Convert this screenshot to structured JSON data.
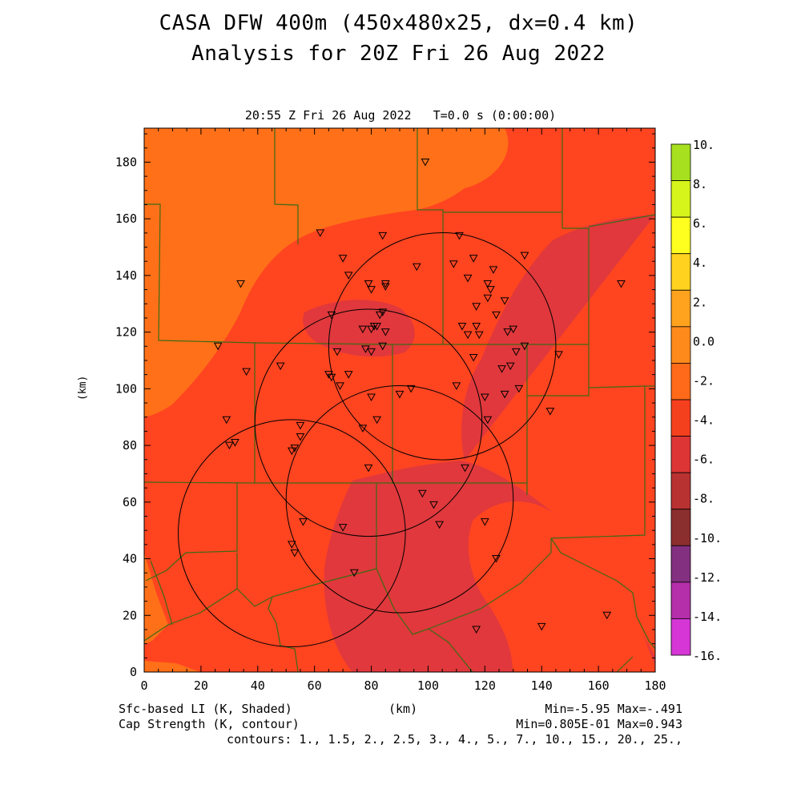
{
  "header": {
    "title_line1": "CASA DFW 400m (450x480x25, dx=0.4 km)",
    "title_line2": "Analysis for 20Z Fri 26 Aug 2022",
    "subtitle": "20:55 Z Fri 26 Aug 2022   T=0.0 s (0:00:00)"
  },
  "axes": {
    "x_label": "(km)",
    "y_label": "(km)",
    "x_ticks": [
      "0",
      "20",
      "40",
      "60",
      "80",
      "100",
      "120",
      "140",
      "160",
      "180"
    ],
    "y_ticks": [
      "0",
      "20",
      "40",
      "60",
      "80",
      "100",
      "120",
      "140",
      "160",
      "180"
    ],
    "x_range": [
      0,
      180
    ],
    "y_range": [
      0,
      192
    ]
  },
  "colorbar": {
    "labels": [
      "10.",
      "8.",
      "6.",
      "4.",
      "2.",
      "0.0",
      "-2.",
      "-4.",
      "-6.",
      "-8.",
      "-10.",
      "-12.",
      "-14.",
      "-16."
    ],
    "colors_top_to_bottom": [
      "#a6e01e",
      "#d6f51a",
      "#ffff1f",
      "#ffd21f",
      "#ffa31f",
      "#ff8a1c",
      "#ff6a1a",
      "#f5401e",
      "#dd3535",
      "#b83232",
      "#8b2e2e",
      "#833080",
      "#b52eaa",
      "#d636d6"
    ]
  },
  "footer": {
    "left_line1": "Sfc-based LI (K, Shaded)",
    "left_line2": "Cap Strength (K, contour)",
    "center": "(km)",
    "right_line1": "Min=-5.95 Max=-.491",
    "right_line2": "Min=0.805E-01 Max=0.943",
    "contours": "contours: 1., 1.5, 2., 2.5, 3., 4., 5., 7., 10., 15., 20., 25.,"
  },
  "map": {
    "field_colors": {
      "orange": "#ff7018",
      "red": "#ff4420",
      "darkred": "#e0383c",
      "county_line": "#3c6a14"
    },
    "radar_rings_center_km": [
      [
        105,
        115
      ],
      [
        79,
        88
      ],
      [
        52,
        49
      ],
      [
        90,
        61
      ]
    ],
    "radar_ring_radius_km": 40,
    "stations_km": [
      [
        99,
        180
      ],
      [
        62,
        155
      ],
      [
        84,
        154
      ],
      [
        111,
        154
      ],
      [
        34,
        137
      ],
      [
        70,
        146
      ],
      [
        72,
        140
      ],
      [
        96,
        143
      ],
      [
        114,
        139
      ],
      [
        116,
        146
      ],
      [
        109,
        144
      ],
      [
        123,
        142
      ],
      [
        134,
        147
      ],
      [
        168,
        137
      ],
      [
        79,
        137
      ],
      [
        80,
        135
      ],
      [
        85,
        136
      ],
      [
        85,
        137
      ],
      [
        121,
        137
      ],
      [
        122,
        135
      ],
      [
        121,
        132
      ],
      [
        127,
        131
      ],
      [
        117,
        129
      ],
      [
        124,
        126
      ],
      [
        84,
        127
      ],
      [
        83,
        126
      ],
      [
        66,
        126
      ],
      [
        77,
        121
      ],
      [
        80,
        121
      ],
      [
        81,
        122
      ],
      [
        82,
        122
      ],
      [
        85,
        120
      ],
      [
        112,
        122
      ],
      [
        114,
        119
      ],
      [
        117,
        122
      ],
      [
        118,
        119
      ],
      [
        128,
        120
      ],
      [
        130,
        121
      ],
      [
        134,
        115
      ],
      [
        26,
        115
      ],
      [
        68,
        113
      ],
      [
        78,
        114
      ],
      [
        80,
        113
      ],
      [
        84,
        115
      ],
      [
        116,
        111
      ],
      [
        131,
        113
      ],
      [
        146,
        112
      ],
      [
        48,
        108
      ],
      [
        36,
        106
      ],
      [
        126,
        107
      ],
      [
        129,
        108
      ],
      [
        65,
        105
      ],
      [
        66,
        104
      ],
      [
        72,
        105
      ],
      [
        69,
        101
      ],
      [
        110,
        101
      ],
      [
        94,
        100
      ],
      [
        90,
        98
      ],
      [
        80,
        97
      ],
      [
        120,
        97
      ],
      [
        127,
        98
      ],
      [
        132,
        100
      ],
      [
        143,
        92
      ],
      [
        29,
        89
      ],
      [
        82,
        89
      ],
      [
        121,
        89
      ],
      [
        55,
        87
      ],
      [
        77,
        86
      ],
      [
        55,
        83
      ],
      [
        30,
        80
      ],
      [
        32,
        81
      ],
      [
        53,
        79
      ],
      [
        52,
        78
      ],
      [
        79,
        72
      ],
      [
        113,
        72
      ],
      [
        98,
        63
      ],
      [
        102,
        59
      ],
      [
        56,
        53
      ],
      [
        120,
        53
      ],
      [
        70,
        51
      ],
      [
        104,
        52
      ],
      [
        52,
        45
      ],
      [
        53,
        42
      ],
      [
        124,
        40
      ],
      [
        74,
        35
      ],
      [
        117,
        15
      ],
      [
        140,
        16
      ],
      [
        163,
        20
      ]
    ]
  }
}
